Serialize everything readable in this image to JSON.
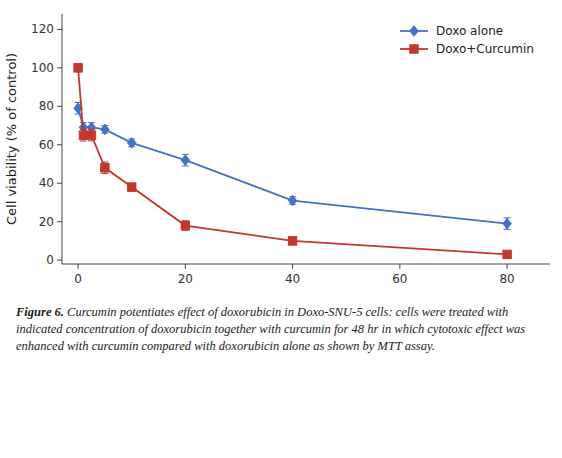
{
  "chart_data": {
    "type": "line",
    "y_label": "Cell viability (% of control)",
    "x": [
      0,
      1,
      2.5,
      5,
      10,
      20,
      40,
      80
    ],
    "series": [
      {
        "name": "Doxo alone",
        "color": "#4472C4",
        "marker": "diamond",
        "line_style": "solid",
        "values": [
          79,
          69,
          69,
          68,
          61,
          52,
          31,
          19
        ],
        "errors": [
          3,
          2.5,
          2.5,
          2,
          2,
          3,
          2,
          3
        ]
      },
      {
        "name": "Doxo+Curcumin",
        "color": "#C0392B",
        "marker": "square",
        "line_style": "solid",
        "values": [
          100,
          65,
          65,
          48,
          38,
          18,
          10,
          3
        ],
        "errors": [
          2,
          3,
          3,
          3,
          2,
          2.5,
          2,
          1
        ]
      }
    ],
    "xlim": [
      -3,
      88
    ],
    "ylim": [
      -2,
      128
    ],
    "xticks": [
      0,
      20,
      40,
      60,
      80
    ],
    "yticks": [
      0,
      20,
      40,
      60,
      80,
      100,
      120
    ],
    "grid": false,
    "legend": "upper right",
    "annotations": [
      "Figure 6.",
      " Curcumin potentiates effect of doxorubicin in Doxo-SNU-5 cells: cells were treated with indicated concentration of doxorubicin together with curcumin for 48 hr in which cytotoxic effect was enhanced with curcumin compared with doxorubicin alone as shown by MTT assay."
    ]
  }
}
